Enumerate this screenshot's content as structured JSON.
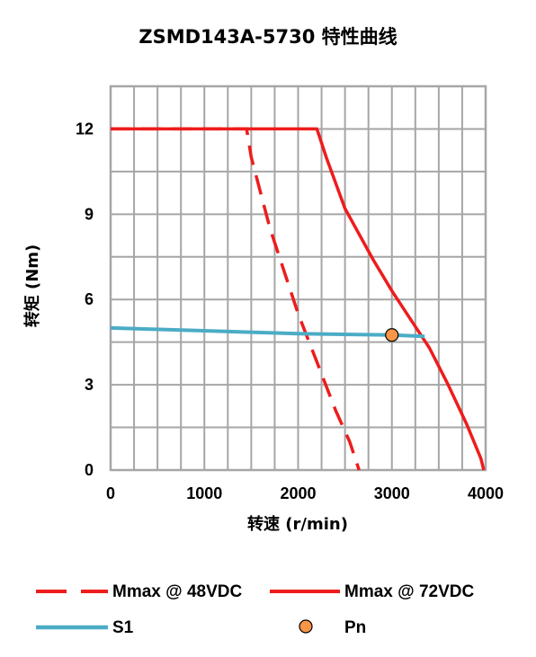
{
  "chart_data": {
    "type": "line",
    "title": "ZSMD143A-5730 特性曲线",
    "xlabel": "转速 (r/min)",
    "ylabel": "转矩 (Nm)",
    "xlim": [
      0,
      4000
    ],
    "ylim": [
      0,
      13.5
    ],
    "x_ticks": [
      0,
      1000,
      2000,
      3000,
      4000
    ],
    "x_tick_labels": [
      "0",
      "1000",
      "2000",
      "3000",
      "4000"
    ],
    "y_ticks": [
      0,
      3,
      6,
      9,
      12
    ],
    "y_tick_labels": [
      "0",
      "3",
      "6",
      "9",
      "12"
    ],
    "grid": true,
    "legend_position": "bottom",
    "series": [
      {
        "name": "Mmax @ 48VDC",
        "style": "dashed",
        "color": "#ee1c1c",
        "points": [
          [
            0,
            12
          ],
          [
            1450,
            12
          ],
          [
            1500,
            11
          ],
          [
            1700,
            8.5
          ],
          [
            2000,
            5.5
          ],
          [
            2200,
            3.8
          ],
          [
            2400,
            2.1
          ],
          [
            2550,
            1.0
          ],
          [
            2650,
            0
          ]
        ]
      },
      {
        "name": "Mmax @ 72VDC",
        "style": "solid",
        "color": "#ee1c1c",
        "points": [
          [
            0,
            12
          ],
          [
            2200,
            12
          ],
          [
            2300,
            11
          ],
          [
            2500,
            9.2
          ],
          [
            2800,
            7.4
          ],
          [
            3000,
            6.3
          ],
          [
            3200,
            5.3
          ],
          [
            3400,
            4.3
          ],
          [
            3600,
            3.0
          ],
          [
            3800,
            1.6
          ],
          [
            3950,
            0.4
          ],
          [
            3980,
            0
          ]
        ]
      },
      {
        "name": "S1",
        "style": "solid",
        "color": "#4bacc6",
        "points": [
          [
            0,
            5.0
          ],
          [
            1000,
            4.9
          ],
          [
            2000,
            4.8
          ],
          [
            3000,
            4.75
          ],
          [
            3350,
            4.7
          ]
        ]
      },
      {
        "name": "Pn",
        "style": "marker",
        "color": "#f79646",
        "points": [
          [
            3000,
            4.75
          ]
        ]
      }
    ]
  }
}
